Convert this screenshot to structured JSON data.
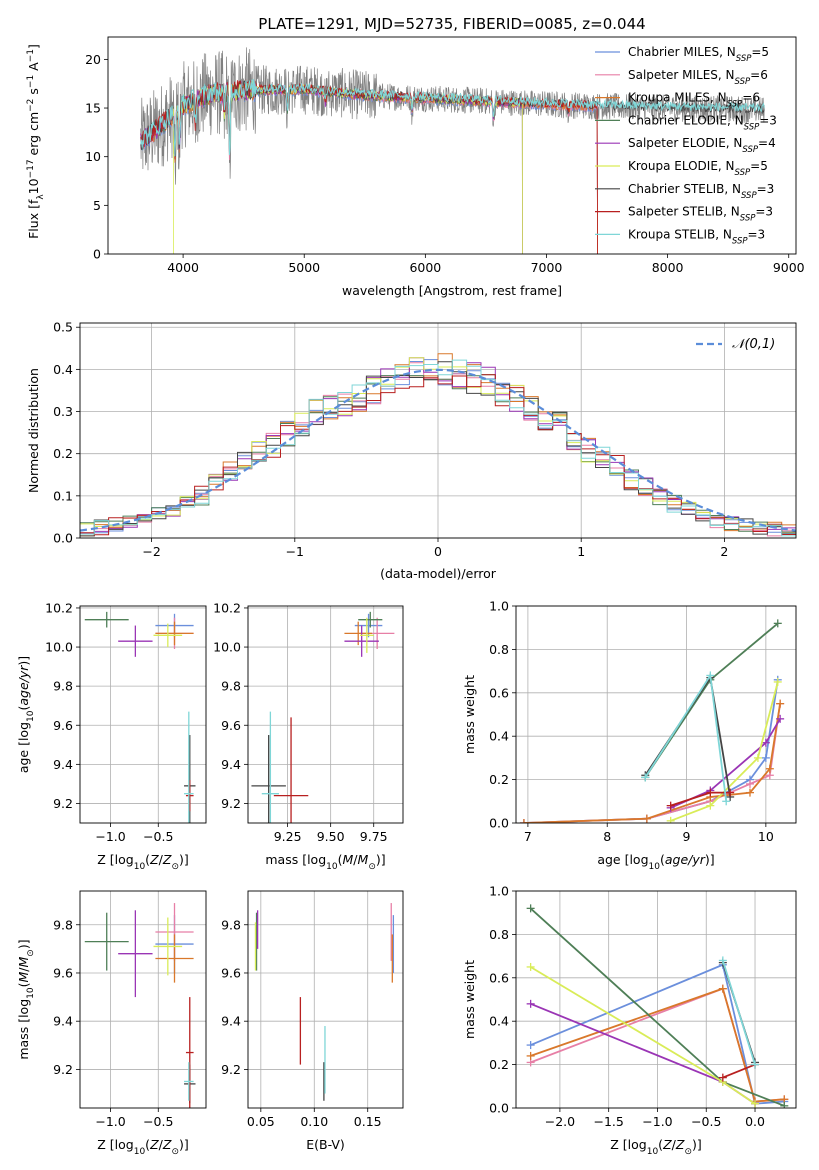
{
  "colors": {
    "chabrier_miles": "#6b8fdc",
    "salpeter_miles": "#e77fa6",
    "kroupa_miles": "#d9782b",
    "chabrier_elodie": "#4f7f57",
    "salpeter_elodie": "#9a35b5",
    "kroupa_elodie": "#d9ec58",
    "chabrier_stelib": "#454545",
    "salpeter_stelib": "#b82020",
    "kroupa_stelib": "#7fd6d7",
    "gray_spectrum": "#808080",
    "normal_dash": "#5b8dd9"
  },
  "legend": [
    {
      "key": "chabrier_miles",
      "pre": "Chabrier MILES, N",
      "sub": "SSP",
      "post": "=5"
    },
    {
      "key": "salpeter_miles",
      "pre": "Salpeter MILES, N",
      "sub": "SSP",
      "post": "=6"
    },
    {
      "key": "kroupa_miles",
      "pre": "Kroupa MILES, N",
      "sub": "SSP",
      "post": "=6"
    },
    {
      "key": "chabrier_elodie",
      "pre": "Chabrier ELODIE, N",
      "sub": "SSP",
      "post": "=3"
    },
    {
      "key": "salpeter_elodie",
      "pre": "Salpeter ELODIE, N",
      "sub": "SSP",
      "post": "=4"
    },
    {
      "key": "kroupa_elodie",
      "pre": "Kroupa ELODIE, N",
      "sub": "SSP",
      "post": "=5"
    },
    {
      "key": "chabrier_stelib",
      "pre": "Chabrier STELIB, N",
      "sub": "SSP",
      "post": "=3"
    },
    {
      "key": "salpeter_stelib",
      "pre": "Salpeter STELIB, N",
      "sub": "SSP",
      "post": "=3"
    },
    {
      "key": "kroupa_stelib",
      "pre": "Kroupa STELIB, N",
      "sub": "SSP",
      "post": "=3"
    }
  ],
  "chart_data": [
    {
      "id": "spectrum",
      "type": "line",
      "title": "PLATE=1291, MJD=52735, FIBERID=0085, z=0.044",
      "xlabel": "wavelength [Angstrom, rest frame]",
      "ylabel": "Flux [f_λ 10^-17 erg cm^-2 s^-1 A^-1]",
      "xlim": [
        3380,
        9060
      ],
      "ylim": [
        0,
        22.3
      ],
      "xticks": [
        4000,
        5000,
        6000,
        7000,
        8000,
        9000
      ],
      "yticks": [
        0,
        5,
        10,
        15,
        20
      ],
      "legend_position": "upper-right",
      "model_cutoffs": {
        "kroupa_elodie_wavelength_end": 6800,
        "salpeter_stelib_wavelength_end": 7420,
        "miles_wavelength_end": 7420
      },
      "continuum_points": [
        [
          3650,
          11.5
        ],
        [
          3800,
          13.0
        ],
        [
          4000,
          15.3
        ],
        [
          4200,
          16.4
        ],
        [
          4500,
          16.8
        ],
        [
          5000,
          16.9
        ],
        [
          5500,
          16.3
        ],
        [
          6000,
          16.0
        ],
        [
          6500,
          15.7
        ],
        [
          7000,
          15.4
        ],
        [
          7400,
          15.2
        ],
        [
          8000,
          15.0
        ],
        [
          8500,
          14.9
        ],
        [
          8800,
          14.8
        ]
      ]
    },
    {
      "id": "residuals",
      "type": "line",
      "xlabel": "(data-model)/error",
      "ylabel": "Normed distribution",
      "xlim": [
        -2.5,
        2.5
      ],
      "ylim": [
        0,
        0.51
      ],
      "xticks": [
        -2,
        -1,
        0,
        1,
        2
      ],
      "yticks": [
        0.0,
        0.1,
        0.2,
        0.3,
        0.4,
        0.5
      ],
      "grid": true,
      "legend": "𝒩(0,1)",
      "legend_position": "upper-right",
      "bins": {
        "start": -2.5,
        "width": 0.1,
        "count": 50
      },
      "reference_hist": [
        0.02,
        0.025,
        0.03,
        0.04,
        0.05,
        0.06,
        0.07,
        0.08,
        0.1,
        0.13,
        0.16,
        0.18,
        0.2,
        0.22,
        0.25,
        0.27,
        0.3,
        0.31,
        0.32,
        0.33,
        0.35,
        0.37,
        0.38,
        0.39,
        0.4,
        0.4,
        0.39,
        0.38,
        0.37,
        0.35,
        0.33,
        0.31,
        0.29,
        0.27,
        0.24,
        0.21,
        0.19,
        0.17,
        0.14,
        0.12,
        0.1,
        0.08,
        0.065,
        0.05,
        0.04,
        0.035,
        0.03,
        0.025,
        0.02,
        0.015
      ]
    },
    {
      "id": "age_vs_Z",
      "type": "scatter",
      "xlabel": "Z [log10(Z/Z⊙)]",
      "ylabel": "age [log10(age/yr)]",
      "xlim": [
        -1.32,
        -0.0
      ],
      "ylim": [
        9.1,
        10.21
      ],
      "xticks": [
        -1.0,
        -0.5
      ],
      "yticks": [
        9.2,
        9.4,
        9.6,
        9.8,
        10.0,
        10.2
      ],
      "grid": true,
      "points": [
        {
          "key": "chabrier_miles",
          "x": -0.33,
          "y": 10.11,
          "xerr": 0.2,
          "yerr": 0.06
        },
        {
          "key": "salpeter_miles",
          "x": -0.33,
          "y": 10.07,
          "xerr": 0.2,
          "yerr": 0.08
        },
        {
          "key": "kroupa_miles",
          "x": -0.33,
          "y": 10.07,
          "xerr": 0.2,
          "yerr": 0.06
        },
        {
          "key": "chabrier_elodie",
          "x": -1.04,
          "y": 10.14,
          "xerr": 0.23,
          "yerr": 0.04
        },
        {
          "key": "salpeter_elodie",
          "x": -0.74,
          "y": 10.03,
          "xerr": 0.18,
          "yerr": 0.08
        },
        {
          "key": "kroupa_elodie",
          "x": -0.4,
          "y": 10.06,
          "xerr": 0.15,
          "yerr": 0.06
        },
        {
          "key": "chabrier_stelib",
          "x": -0.17,
          "y": 9.29,
          "xerr": 0.06,
          "yerr": 0.26
        },
        {
          "key": "salpeter_stelib",
          "x": -0.17,
          "y": 9.24,
          "xerr": 0.04,
          "yerr": 0.08
        },
        {
          "key": "kroupa_stelib",
          "x": -0.18,
          "y": 9.25,
          "xerr": 0.05,
          "yerr": 0.42
        }
      ]
    },
    {
      "id": "age_vs_mass",
      "type": "scatter",
      "xlabel": "mass [log10(M/M⊙)]",
      "ylabel": "",
      "xlim": [
        9.02,
        9.92
      ],
      "ylim": [
        9.1,
        10.21
      ],
      "xticks": [
        9.25,
        9.5,
        9.75
      ],
      "yticks": [
        9.2,
        9.4,
        9.6,
        9.8,
        10.0,
        10.2
      ],
      "grid": true,
      "points": [
        {
          "key": "chabrier_miles",
          "x": 9.72,
          "y": 10.11,
          "xerr": 0.08,
          "yerr": 0.06
        },
        {
          "key": "salpeter_miles",
          "x": 9.77,
          "y": 10.07,
          "xerr": 0.1,
          "yerr": 0.08
        },
        {
          "key": "kroupa_miles",
          "x": 9.66,
          "y": 10.07,
          "xerr": 0.08,
          "yerr": 0.06
        },
        {
          "key": "chabrier_elodie",
          "x": 9.73,
          "y": 10.14,
          "xerr": 0.07,
          "yerr": 0.04
        },
        {
          "key": "salpeter_elodie",
          "x": 9.68,
          "y": 10.03,
          "xerr": 0.1,
          "yerr": 0.08
        },
        {
          "key": "kroupa_elodie",
          "x": 9.71,
          "y": 10.06,
          "xerr": 0.04,
          "yerr": 0.09
        },
        {
          "key": "chabrier_stelib",
          "x": 9.14,
          "y": 9.29,
          "xerr": 0.1,
          "yerr": 0.26
        },
        {
          "key": "salpeter_stelib",
          "x": 9.27,
          "y": 9.24,
          "xerr": 0.1,
          "yerr": 0.4
        },
        {
          "key": "kroupa_stelib",
          "x": 9.15,
          "y": 9.25,
          "xerr": 0.05,
          "yerr": 0.42
        }
      ]
    },
    {
      "id": "massweight_vs_age",
      "type": "line",
      "xlabel": "age [log10(age/yr)]",
      "ylabel": "mass weight",
      "xlim": [
        6.85,
        10.38
      ],
      "ylim": [
        0,
        1.0
      ],
      "xticks": [
        7,
        8,
        9,
        10
      ],
      "yticks": [
        0.0,
        0.2,
        0.4,
        0.6,
        0.8,
        1.0
      ],
      "grid": true,
      "series": [
        {
          "key": "chabrier_miles",
          "x": [
            6.95,
            8.5,
            9.3,
            9.8,
            10.0,
            10.15
          ],
          "y": [
            0.0,
            0.02,
            0.1,
            0.2,
            0.3,
            0.66
          ]
        },
        {
          "key": "salpeter_miles",
          "x": [
            6.95,
            8.5,
            9.3,
            9.8,
            10.05,
            10.18
          ],
          "y": [
            0.0,
            0.02,
            0.1,
            0.18,
            0.22,
            0.55
          ]
        },
        {
          "key": "kroupa_miles",
          "x": [
            6.95,
            8.5,
            9.3,
            9.8,
            10.05,
            10.18
          ],
          "y": [
            0.0,
            0.02,
            0.12,
            0.14,
            0.25,
            0.55
          ]
        },
        {
          "key": "chabrier_elodie",
          "x": [
            8.48,
            9.3,
            10.15
          ],
          "y": [
            0.21,
            0.66,
            0.92
          ]
        },
        {
          "key": "salpeter_elodie",
          "x": [
            8.8,
            9.3,
            10.0,
            10.18
          ],
          "y": [
            0.07,
            0.15,
            0.37,
            0.48
          ]
        },
        {
          "key": "kroupa_elodie",
          "x": [
            8.8,
            9.3,
            9.9,
            10.15
          ],
          "y": [
            0.01,
            0.08,
            0.3,
            0.65
          ]
        },
        {
          "key": "chabrier_stelib",
          "x": [
            8.48,
            9.3,
            9.55
          ],
          "y": [
            0.22,
            0.67,
            0.12
          ]
        },
        {
          "key": "salpeter_stelib",
          "x": [
            8.8,
            9.3,
            9.55
          ],
          "y": [
            0.08,
            0.14,
            0.14
          ]
        },
        {
          "key": "kroupa_stelib",
          "x": [
            8.48,
            9.3,
            9.5
          ],
          "y": [
            0.21,
            0.68,
            0.1
          ]
        }
      ]
    },
    {
      "id": "mass_vs_Z",
      "type": "scatter",
      "xlabel": "Z [log10(Z/Z⊙)]",
      "ylabel": "mass [log10(M/M⊙)]",
      "xlim": [
        -1.32,
        -0.0
      ],
      "ylim": [
        9.04,
        9.94
      ],
      "xticks": [
        -1.0,
        -0.5
      ],
      "yticks": [
        9.2,
        9.4,
        9.6,
        9.8
      ],
      "grid": true,
      "points": [
        {
          "key": "chabrier_miles",
          "x": -0.33,
          "y": 9.72,
          "xerr": 0.2,
          "yerr": 0.12
        },
        {
          "key": "salpeter_miles",
          "x": -0.33,
          "y": 9.77,
          "xerr": 0.2,
          "yerr": 0.12
        },
        {
          "key": "kroupa_miles",
          "x": -0.33,
          "y": 9.66,
          "xerr": 0.2,
          "yerr": 0.1
        },
        {
          "key": "chabrier_elodie",
          "x": -1.04,
          "y": 9.73,
          "xerr": 0.23,
          "yerr": 0.12
        },
        {
          "key": "salpeter_elodie",
          "x": -0.74,
          "y": 9.68,
          "xerr": 0.18,
          "yerr": 0.18
        },
        {
          "key": "kroupa_elodie",
          "x": -0.4,
          "y": 9.71,
          "xerr": 0.15,
          "yerr": 0.12
        },
        {
          "key": "chabrier_stelib",
          "x": -0.17,
          "y": 9.14,
          "xerr": 0.06,
          "yerr": 0.08
        },
        {
          "key": "salpeter_stelib",
          "x": -0.17,
          "y": 9.27,
          "xerr": 0.04,
          "yerr": 0.23
        },
        {
          "key": "kroupa_stelib",
          "x": -0.18,
          "y": 9.15,
          "xerr": 0.05,
          "yerr": 0.08
        }
      ]
    },
    {
      "id": "mass_vs_ebv",
      "type": "scatter",
      "xlabel": "E(B-V)",
      "ylabel": "",
      "xlim": [
        0.038,
        0.183
      ],
      "ylim": [
        9.04,
        9.94
      ],
      "xticks": [
        0.05,
        0.1,
        0.15
      ],
      "yticks": [
        9.2,
        9.4,
        9.6,
        9.8
      ],
      "grid": true,
      "points": [
        {
          "key": "chabrier_miles",
          "x": 0.174,
          "y": 9.72,
          "yerr": 0.12
        },
        {
          "key": "salpeter_miles",
          "x": 0.172,
          "y": 9.77,
          "yerr": 0.12
        },
        {
          "key": "kroupa_miles",
          "x": 0.173,
          "y": 9.66,
          "yerr": 0.1
        },
        {
          "key": "chabrier_elodie",
          "x": 0.046,
          "y": 9.73,
          "yerr": 0.12
        },
        {
          "key": "salpeter_elodie",
          "x": 0.047,
          "y": 9.78,
          "yerr": 0.08
        },
        {
          "key": "kroupa_elodie",
          "x": 0.045,
          "y": 9.71,
          "yerr": 0.1
        },
        {
          "key": "chabrier_stelib",
          "x": 0.109,
          "y": 9.15,
          "yerr": 0.08
        },
        {
          "key": "salpeter_stelib",
          "x": 0.087,
          "y": 9.36,
          "yerr": 0.14
        },
        {
          "key": "kroupa_stelib",
          "x": 0.11,
          "y": 9.24,
          "yerr": 0.14
        }
      ]
    },
    {
      "id": "massweight_vs_Z",
      "type": "line",
      "xlabel": "Z [log10(Z/Z⊙)]",
      "ylabel": "mass weight",
      "xlim": [
        -2.45,
        0.42
      ],
      "ylim": [
        0,
        1.0
      ],
      "xticks": [
        -2.0,
        -1.5,
        -1.0,
        -0.5,
        0.0
      ],
      "yticks": [
        0.0,
        0.2,
        0.4,
        0.6,
        0.8,
        1.0
      ],
      "grid": true,
      "series": [
        {
          "key": "chabrier_miles",
          "x": [
            -2.3,
            -0.33,
            0.0,
            0.3
          ],
          "y": [
            0.29,
            0.66,
            0.02,
            0.03
          ]
        },
        {
          "key": "salpeter_miles",
          "x": [
            -2.3,
            -0.33,
            0.0,
            0.3
          ],
          "y": [
            0.21,
            0.55,
            0.03,
            0.04
          ]
        },
        {
          "key": "kroupa_miles",
          "x": [
            -2.3,
            -0.33,
            0.0,
            0.3
          ],
          "y": [
            0.24,
            0.55,
            0.03,
            0.04
          ]
        },
        {
          "key": "chabrier_elodie",
          "x": [
            -2.3,
            -0.33,
            0.3
          ],
          "y": [
            0.92,
            0.12,
            0.01
          ]
        },
        {
          "key": "salpeter_elodie",
          "x": [
            -2.3,
            -0.33,
            0.0
          ],
          "y": [
            0.48,
            0.12,
            0.02
          ]
        },
        {
          "key": "kroupa_elodie",
          "x": [
            -2.3,
            -0.33,
            0.0
          ],
          "y": [
            0.65,
            0.12,
            0.02
          ]
        },
        {
          "key": "chabrier_stelib",
          "x": [
            -0.33,
            0.0
          ],
          "y": [
            0.67,
            0.21
          ]
        },
        {
          "key": "salpeter_stelib",
          "x": [
            -0.33,
            0.0
          ],
          "y": [
            0.14,
            0.2
          ]
        },
        {
          "key": "kroupa_stelib",
          "x": [
            -0.33,
            0.0
          ],
          "y": [
            0.68,
            0.2
          ]
        }
      ]
    }
  ]
}
